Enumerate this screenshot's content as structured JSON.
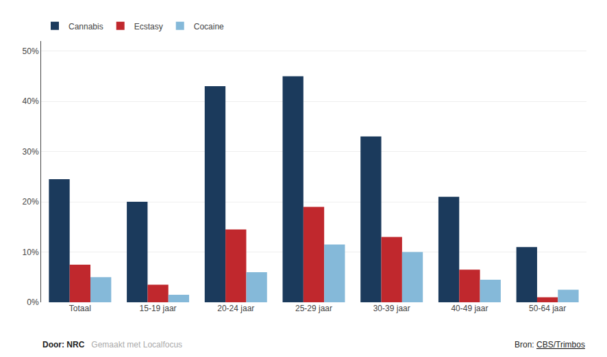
{
  "chart_data": {
    "type": "bar",
    "categories": [
      "Totaal",
      "15-19 jaar",
      "20-24 jaar",
      "25-29 jaar",
      "30-39 jaar",
      "40-49 jaar",
      "50-64 jaar"
    ],
    "series": [
      {
        "name": "Cannabis",
        "color": "#1b3a5c",
        "values": [
          24.5,
          20.0,
          43.0,
          45.0,
          33.0,
          21.0,
          11.0
        ]
      },
      {
        "name": "Ecstasy",
        "color": "#c0282d",
        "values": [
          7.5,
          3.5,
          14.5,
          19.0,
          13.0,
          6.5,
          1.0
        ]
      },
      {
        "name": "Cocaine",
        "color": "#85b9d9",
        "values": [
          5.0,
          1.5,
          6.0,
          11.5,
          10.0,
          4.5,
          2.5
        ]
      }
    ],
    "ylim": [
      0,
      52
    ],
    "yticks": [
      {
        "value": 0,
        "label": "0%"
      },
      {
        "value": 10,
        "label": "10%"
      },
      {
        "value": 20,
        "label": "20%"
      },
      {
        "value": 30,
        "label": "30%"
      },
      {
        "value": 40,
        "label": "40%"
      },
      {
        "value": 50,
        "label": "50%"
      }
    ],
    "grid": true,
    "legend": "top left",
    "annotations": [
      "Door: NRC",
      "Gemaakt met Localfocus",
      "Bron:",
      "CBS/Trimbos"
    ]
  }
}
